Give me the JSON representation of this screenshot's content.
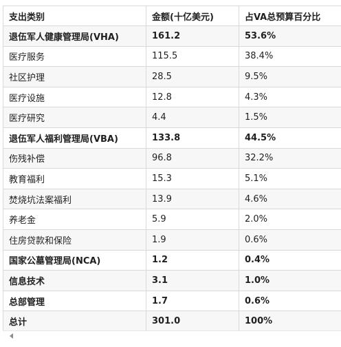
{
  "table": {
    "headers": [
      "支出类别",
      "金额(十亿美元)",
      "占VA总预算百分比"
    ],
    "rows": [
      {
        "category": "退伍军人健康管理局(VHA)",
        "amount": "161.2",
        "percent": "53.6%",
        "bold": true
      },
      {
        "category": "医疗服务",
        "amount": "115.5",
        "percent": "38.4%",
        "bold": false
      },
      {
        "category": "社区护理",
        "amount": "28.5",
        "percent": "9.5%",
        "bold": false
      },
      {
        "category": "医疗设施",
        "amount": "12.8",
        "percent": "4.3%",
        "bold": false
      },
      {
        "category": "医疗研究",
        "amount": "4.4",
        "percent": "1.5%",
        "bold": false
      },
      {
        "category": "退伍军人福利管理局(VBA)",
        "amount": "133.8",
        "percent": "44.5%",
        "bold": true
      },
      {
        "category": "伤残补偿",
        "amount": "96.8",
        "percent": "32.2%",
        "bold": false
      },
      {
        "category": "教育福利",
        "amount": "15.3",
        "percent": "5.1%",
        "bold": false
      },
      {
        "category": "焚烧坑法案福利",
        "amount": "13.9",
        "percent": "4.6%",
        "bold": false
      },
      {
        "category": "养老金",
        "amount": "5.9",
        "percent": "2.0%",
        "bold": false
      },
      {
        "category": "住房贷款和保险",
        "amount": "1.9",
        "percent": "0.6%",
        "bold": false
      },
      {
        "category": "国家公墓管理局(NCA)",
        "amount": "1.2",
        "percent": "0.4%",
        "bold": true
      },
      {
        "category": "信息技术",
        "amount": "3.1",
        "percent": "1.0%",
        "bold": true
      },
      {
        "category": "总部管理",
        "amount": "1.7",
        "percent": "0.6%",
        "bold": true
      },
      {
        "category": "总计",
        "amount": "301.0",
        "percent": "100%",
        "bold": true
      }
    ]
  },
  "scrollbar": {
    "icon": "chevron-left-icon"
  }
}
